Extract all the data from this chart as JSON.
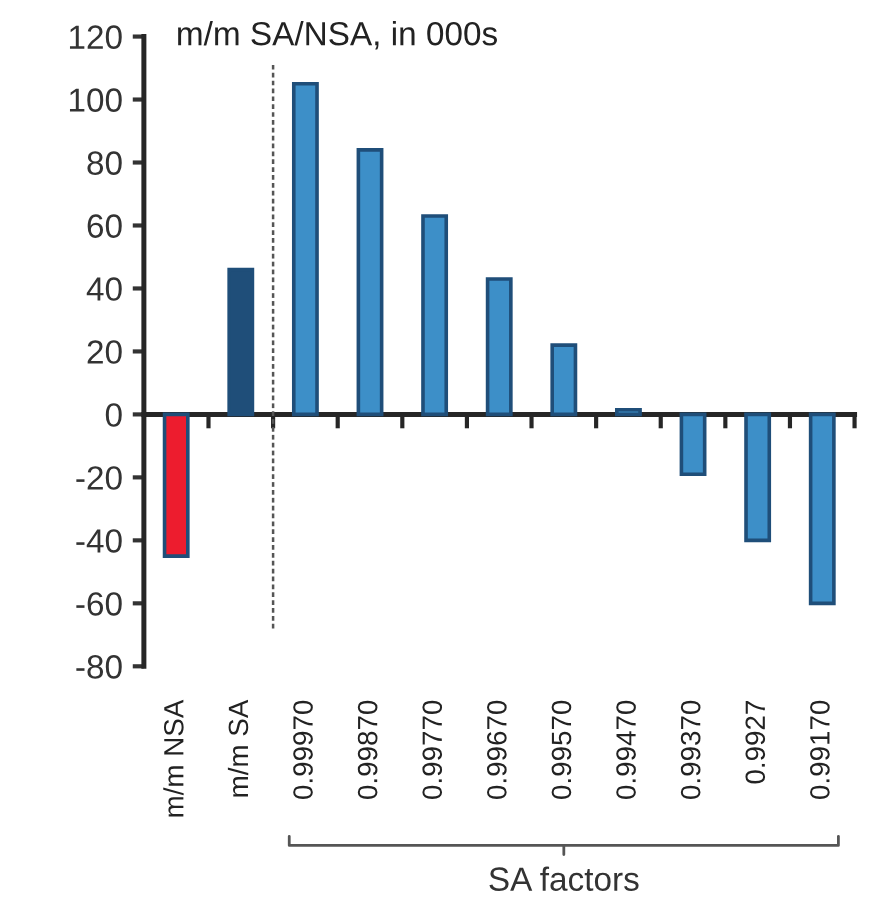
{
  "chart_data": {
    "type": "bar",
    "title": "m/m SA/NSA, in 000s",
    "categories": [
      "m/m NSA",
      "m/m SA",
      "0.99970",
      "0.99870",
      "0.99770",
      "0.99670",
      "0.99570",
      "0.99470",
      "0.99370",
      "0.9927",
      "0.99170"
    ],
    "values": [
      -45,
      46,
      105,
      84,
      63,
      43,
      22,
      1.5,
      -19,
      -40,
      -60
    ],
    "colors": [
      "#ed1c2e",
      "#1f4e79",
      "#3d8fc8",
      "#3d8fc8",
      "#3d8fc8",
      "#3d8fc8",
      "#3d8fc8",
      "#3d8fc8",
      "#3d8fc8",
      "#3d8fc8",
      "#3d8fc8"
    ],
    "ylim": [
      -80,
      120
    ],
    "yticks": [
      -80,
      -60,
      -40,
      -20,
      0,
      20,
      40,
      60,
      80,
      100,
      120
    ],
    "annotations": [
      "SA factors"
    ],
    "legend": false
  }
}
